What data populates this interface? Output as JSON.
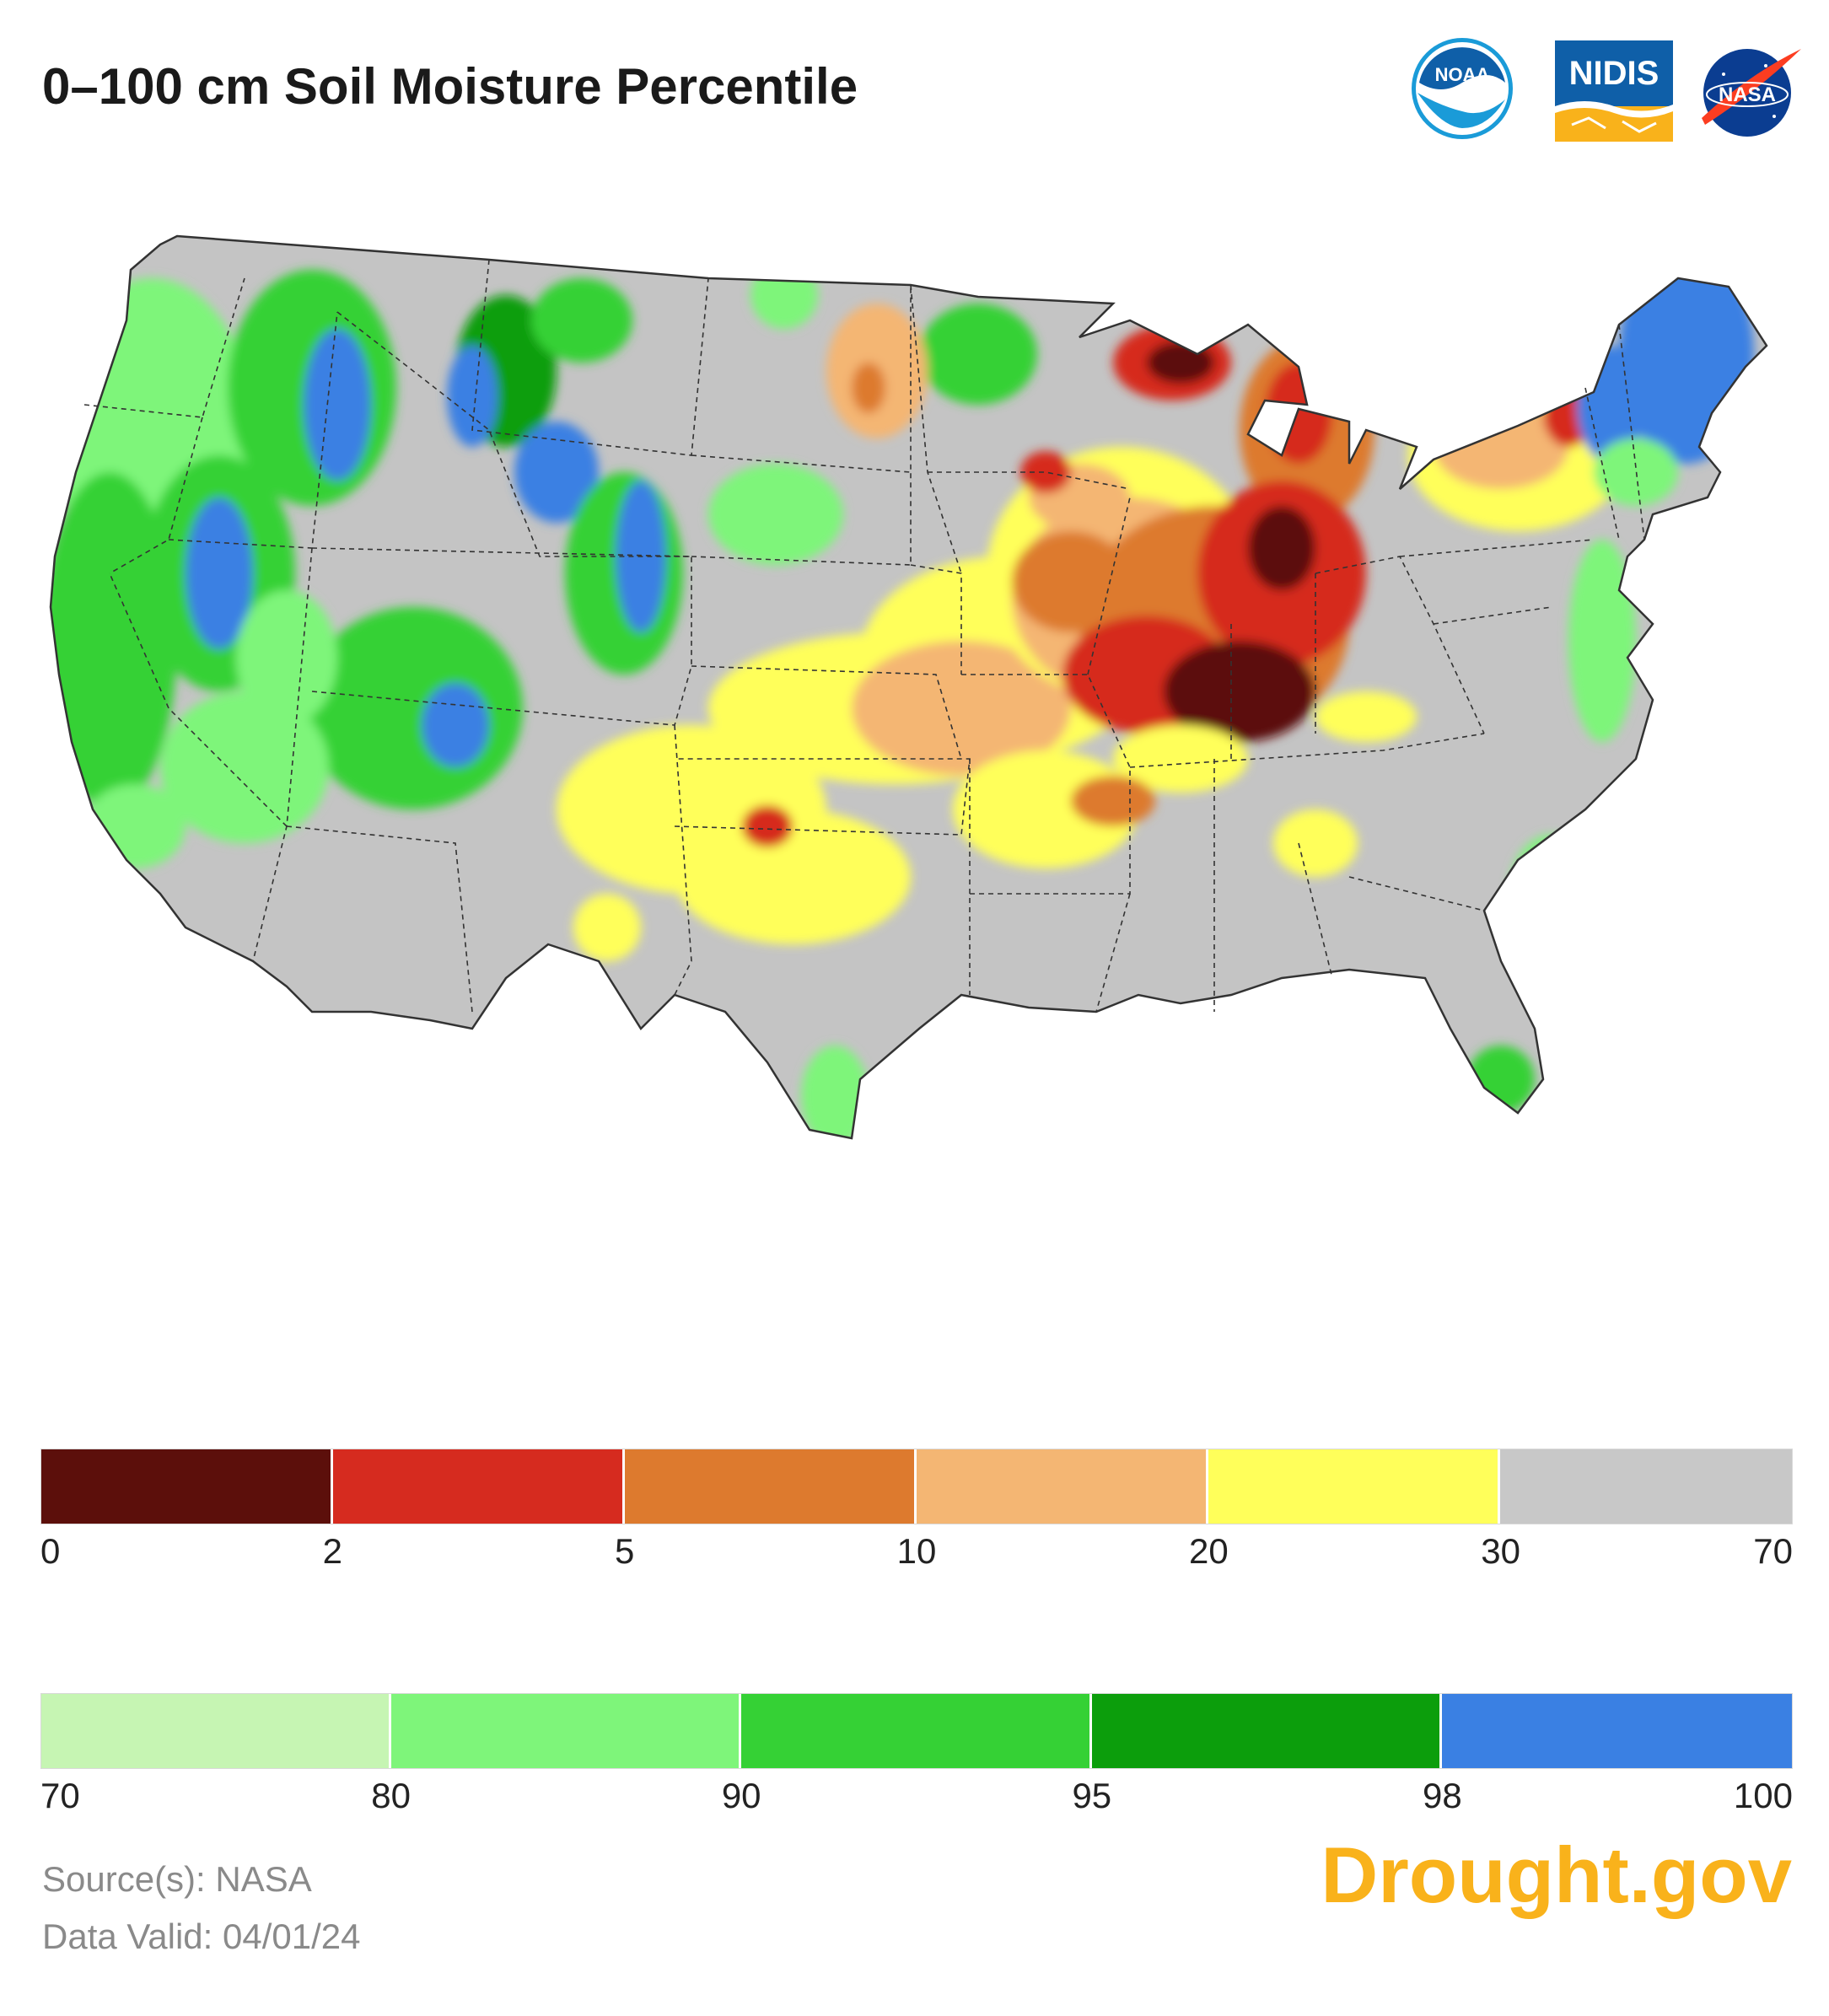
{
  "title": "0–100 cm Soil Moisture Percentile",
  "logos": {
    "noaa": {
      "text": "NOAA",
      "color": "#1a9bd8"
    },
    "nidis": {
      "text": "NIDIS",
      "color": "#0f5fa8",
      "accent": "#f9b21b"
    },
    "nasa": {
      "text": "NASA",
      "color": "#0b3d91",
      "accent": "#fc3d21"
    }
  },
  "legend_dry": {
    "colors": [
      "#5c0f0b",
      "#d62b1f",
      "#dd7a2e",
      "#f4b673",
      "#ffff5a",
      "#c8c8c8"
    ],
    "ticks": [
      "0",
      "2",
      "5",
      "10",
      "20",
      "30",
      "70"
    ]
  },
  "legend_wet": {
    "colors": [
      "#c6f5b3",
      "#7ef57a",
      "#35d135",
      "#0c9e0c",
      "#3a80e3"
    ],
    "ticks": [
      "70",
      "80",
      "90",
      "95",
      "98",
      "100"
    ]
  },
  "map": {
    "land_color": "#c4c4c4",
    "border_color": "#333333"
  },
  "source": "Source(s): NASA",
  "valid": "Data Valid: 04/01/24",
  "brand": "Drought.gov"
}
